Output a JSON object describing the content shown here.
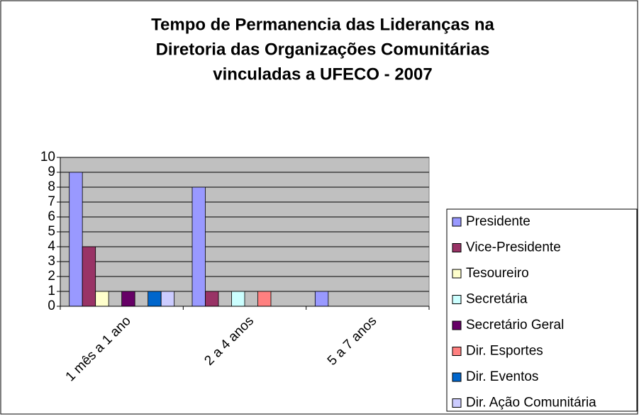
{
  "chart_data": {
    "type": "bar",
    "title": [
      "Tempo de Permanencia das Lideranças na",
      "Diretoria das Organizações Comunitárias",
      "vinculadas a UFECO - 2007"
    ],
    "categories": [
      "1 mês a 1 ano",
      "2 a 4 anos",
      "5 a 7 anos"
    ],
    "series": [
      {
        "name": "Presidente",
        "color": "#9999ff",
        "values": [
          9,
          8,
          1
        ]
      },
      {
        "name": "Vice-Presidente",
        "color": "#993366",
        "values": [
          4,
          1,
          0
        ]
      },
      {
        "name": "Tesoureiro",
        "color": "#ffffcc",
        "values": [
          1,
          0,
          0
        ]
      },
      {
        "name": "Secretária",
        "color": "#ccffff",
        "values": [
          0,
          1,
          0
        ]
      },
      {
        "name": "Secretário Geral",
        "color": "#660066",
        "values": [
          1,
          0,
          0
        ]
      },
      {
        "name": "Dir. Esportes",
        "color": "#ff8080",
        "values": [
          0,
          1,
          0
        ]
      },
      {
        "name": "Dir. Eventos",
        "color": "#0066cc",
        "values": [
          1,
          0,
          0
        ]
      },
      {
        "name": "Dir. Ação Comunitária",
        "color": "#ccccff",
        "values": [
          1,
          0,
          0
        ]
      }
    ],
    "ylim": [
      0,
      10
    ],
    "yticks": [
      0,
      1,
      2,
      3,
      4,
      5,
      6,
      7,
      8,
      9,
      10
    ],
    "grid": true,
    "legend": "right"
  }
}
